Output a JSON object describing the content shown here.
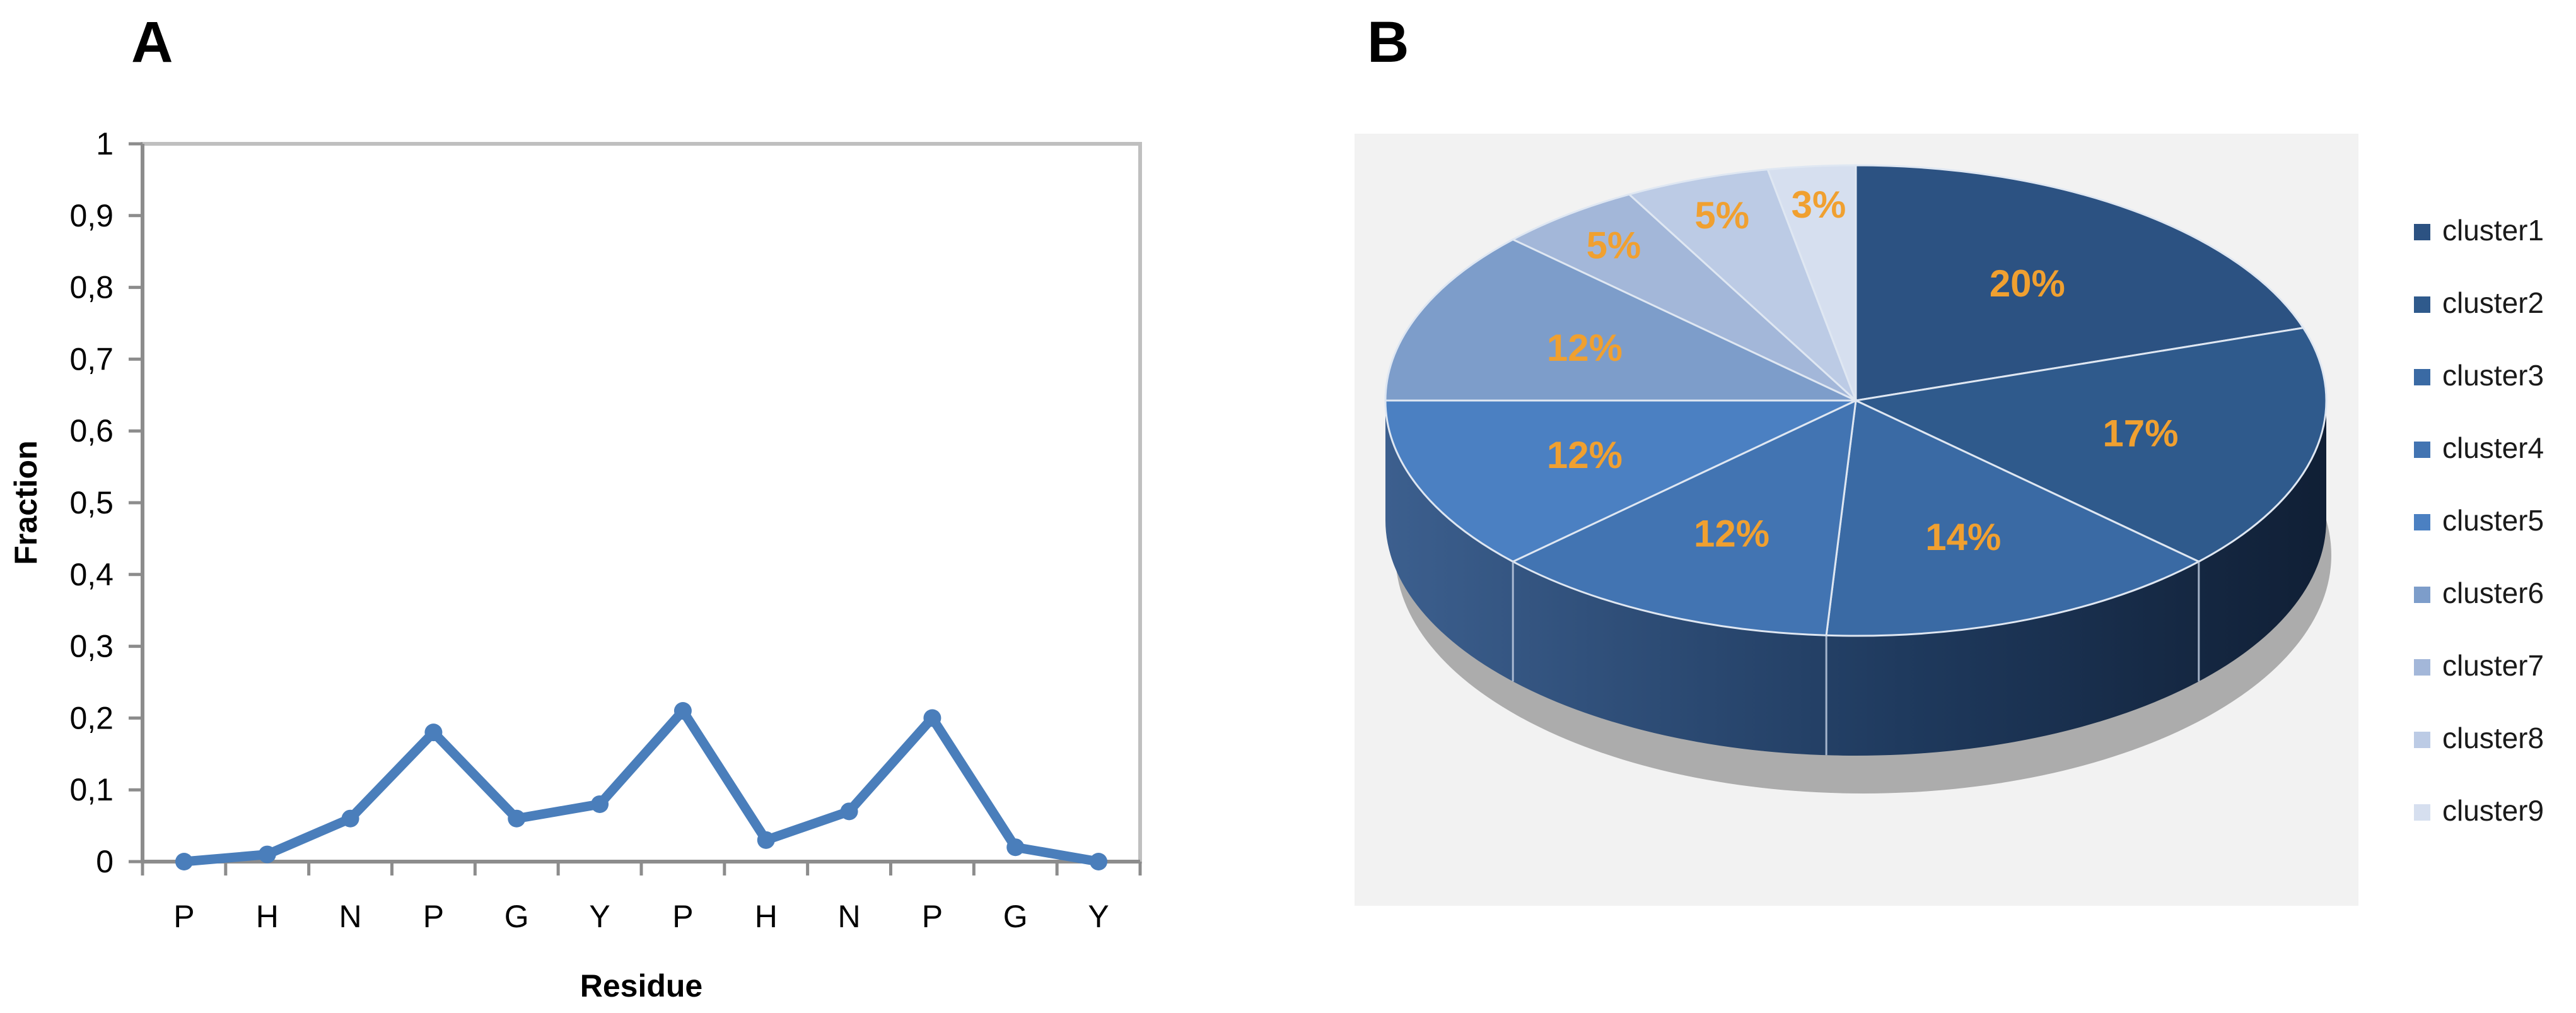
{
  "panel_a": {
    "label": "A"
  },
  "panel_b": {
    "label": "B"
  },
  "chart_data": [
    {
      "type": "line",
      "categories": [
        "P",
        "H",
        "N",
        "P",
        "G",
        "Y",
        "P",
        "H",
        "N",
        "P",
        "G",
        "Y"
      ],
      "values": [
        0.0,
        0.01,
        0.06,
        0.18,
        0.06,
        0.08,
        0.21,
        0.03,
        0.07,
        0.2,
        0.02,
        0.0
      ],
      "title": "",
      "xlabel": "Residue",
      "ylabel": "Fraction",
      "ylim": [
        0,
        1
      ],
      "yticks": [
        "0",
        "0,1",
        "0,2",
        "0,3",
        "0,4",
        "0,5",
        "0,6",
        "0,7",
        "0,8",
        "0,9",
        "1"
      ],
      "grid": false,
      "series_color": "#4a7ebb"
    },
    {
      "type": "pie",
      "labels": [
        "cluster1",
        "cluster2",
        "cluster3",
        "cluster4",
        "cluster5",
        "cluster6",
        "cluster7",
        "cluster8",
        "cluster9"
      ],
      "values": [
        20,
        17,
        14,
        12,
        12,
        12,
        5,
        5,
        3
      ],
      "display_labels": [
        "20%",
        "17%",
        "14%",
        "12%",
        "12%",
        "12%",
        "5%",
        "5%",
        "3%"
      ],
      "colors": [
        "#2c5282",
        "#2f5a8c",
        "#3a6aa4",
        "#4274b2",
        "#4b80c2",
        "#7d9dca",
        "#a3b7d9",
        "#bccbe5",
        "#d6dfef"
      ],
      "label_color": "#f0a030",
      "legend_position": "right",
      "style": "3d"
    }
  ]
}
